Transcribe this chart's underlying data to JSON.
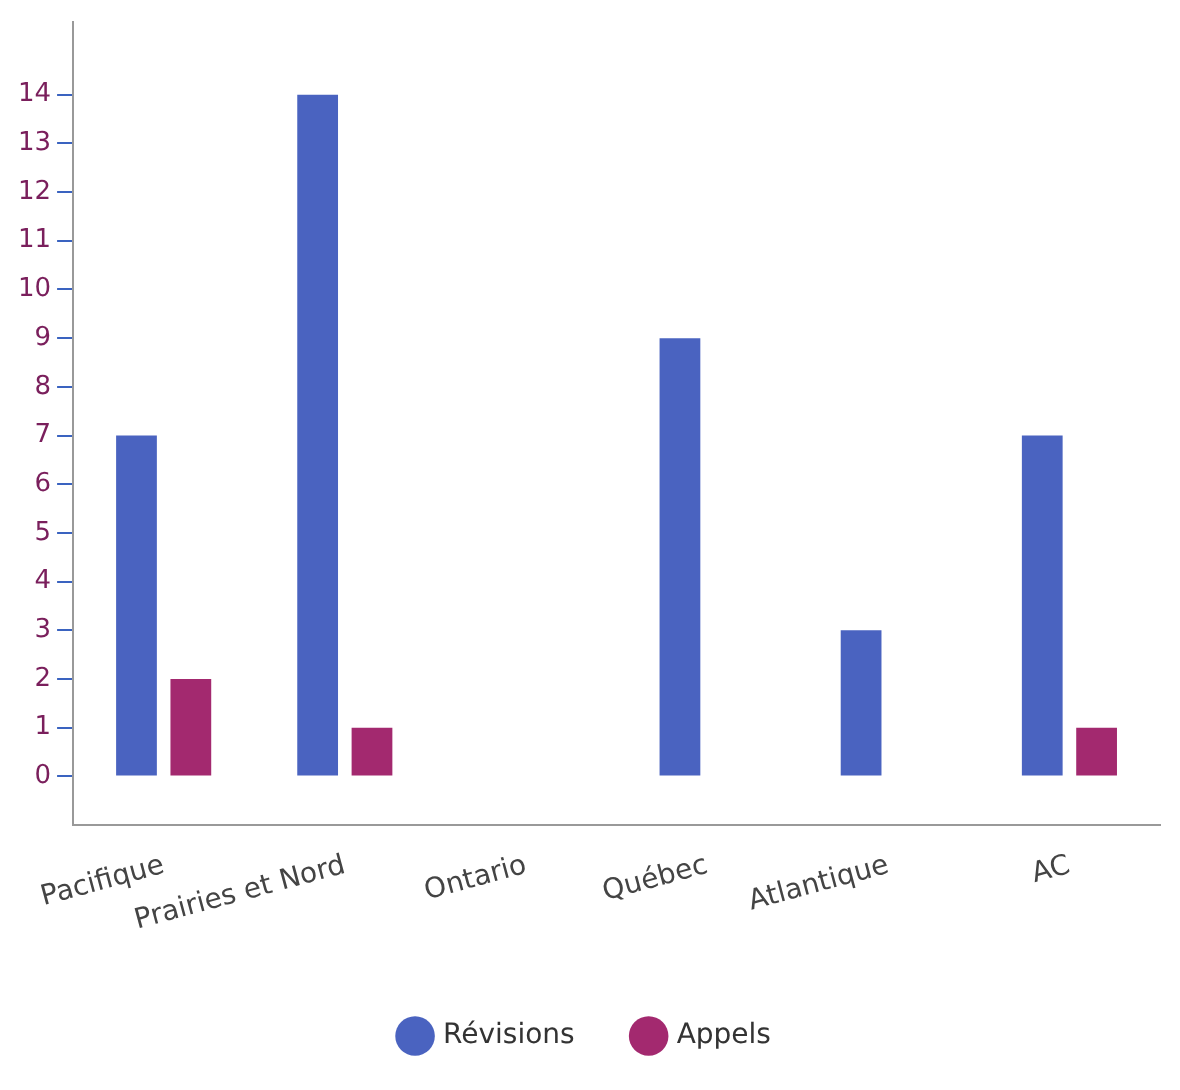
{
  "chart_data": {
    "type": "bar",
    "categories": [
      "Pacifique",
      "Prairies et Nord",
      "Ontario",
      "Québec",
      "Atlantique",
      "AC"
    ],
    "series": [
      {
        "name": "Révisions",
        "color": "#4a63c0",
        "values": [
          7,
          14,
          0,
          9,
          3,
          7
        ]
      },
      {
        "name": "Appels",
        "color": "#a3296f",
        "values": [
          2,
          1,
          0,
          0,
          0,
          1
        ]
      }
    ],
    "ylim": [
      -1,
      15.5
    ],
    "yticks": [
      0,
      1,
      2,
      3,
      4,
      5,
      6,
      7,
      8,
      9,
      10,
      11,
      12,
      13,
      14
    ],
    "grid": false,
    "legend": "bottom"
  }
}
